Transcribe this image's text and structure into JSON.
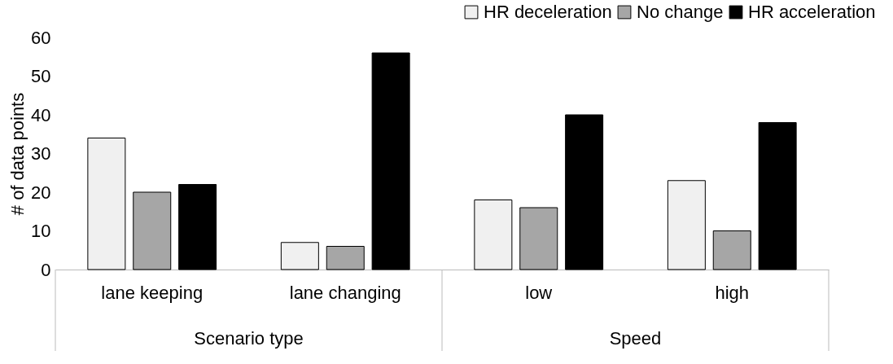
{
  "chart_data": {
    "type": "bar",
    "ylabel": "# of data points",
    "categories": [
      "lane keeping",
      "lane changing",
      "low",
      "high"
    ],
    "series": [
      {
        "name": "HR deceleration",
        "color": "#f0f0f0",
        "values": [
          34,
          7,
          18,
          23
        ]
      },
      {
        "name": "No change",
        "color": "#a6a6a6",
        "values": [
          20,
          6,
          16,
          10
        ]
      },
      {
        "name": "HR acceleration",
        "color": "#000000",
        "values": [
          22,
          56,
          40,
          38
        ]
      }
    ],
    "annotations": [
      "Scenario type",
      "Speed"
    ],
    "ylim": [
      0,
      60
    ],
    "yticks": [
      0,
      10,
      20,
      30,
      40,
      50,
      60
    ],
    "grid": false,
    "legend": "top right"
  }
}
